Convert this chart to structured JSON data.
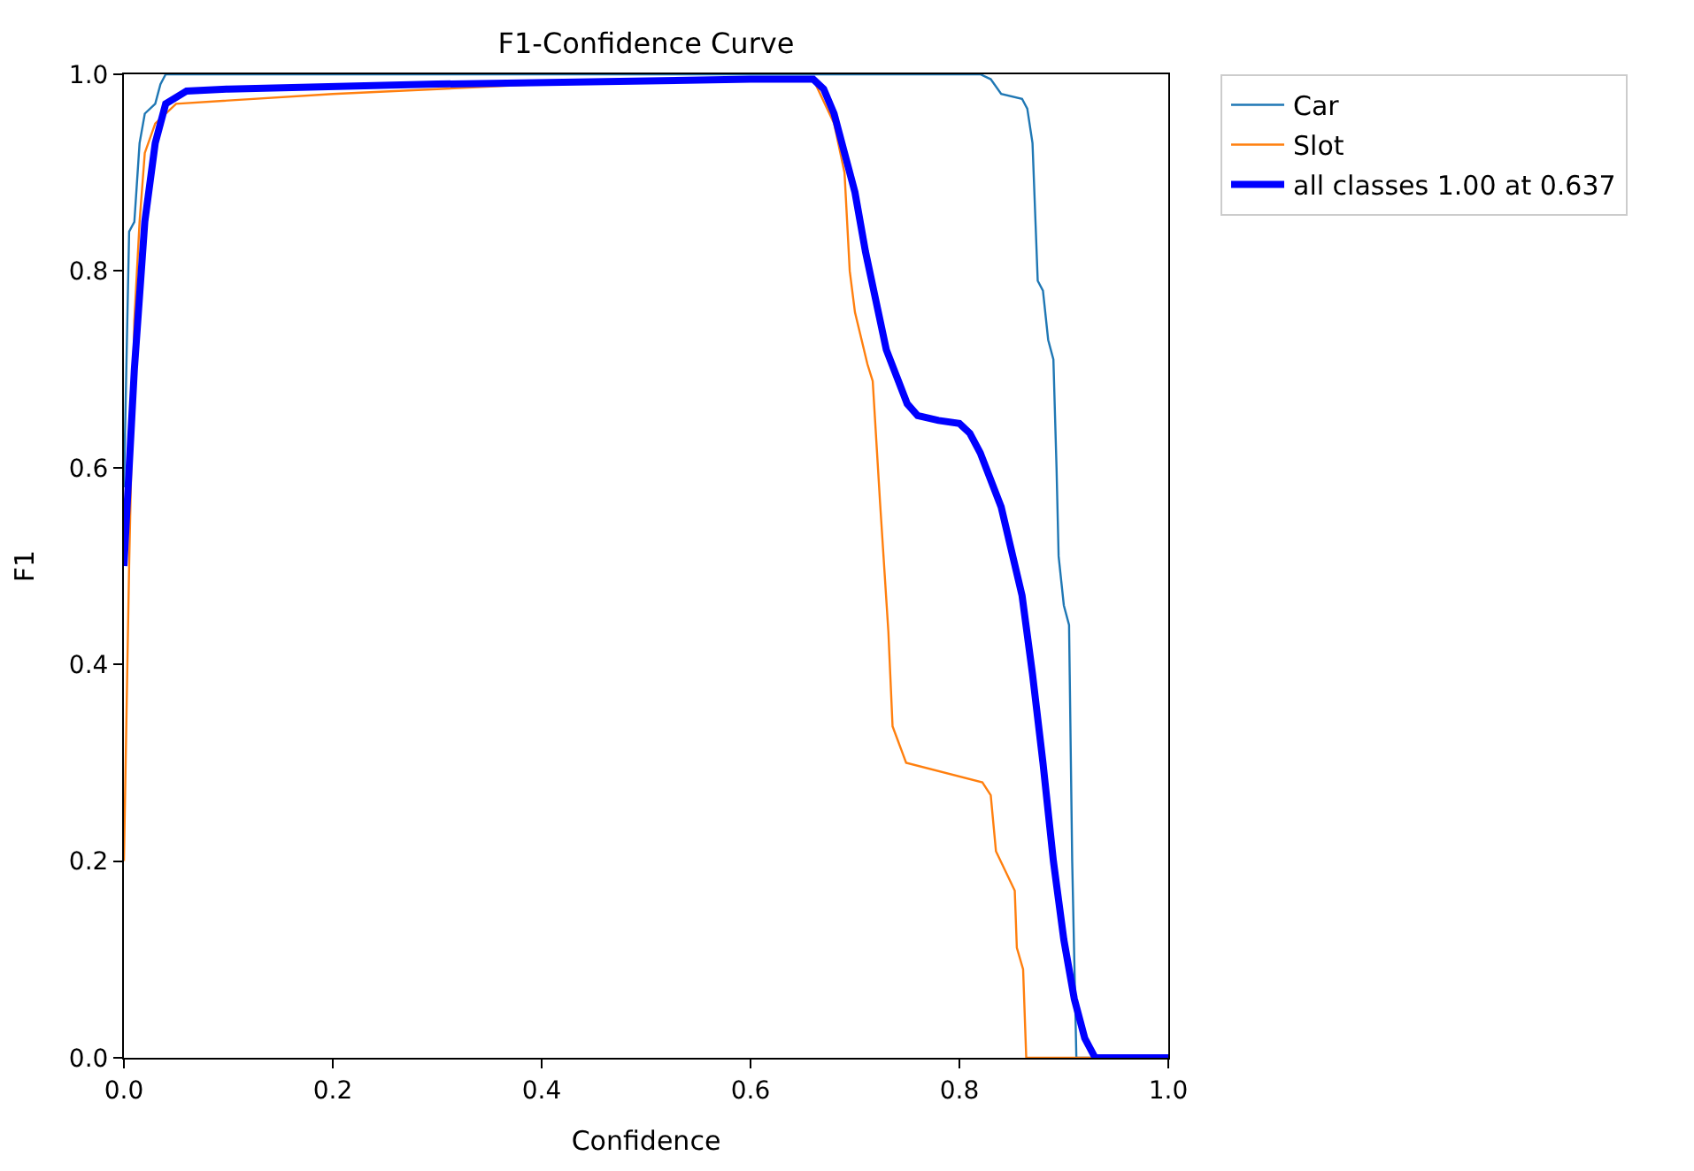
{
  "chart_data": {
    "type": "line",
    "title": "F1-Confidence Curve",
    "xlabel": "Confidence",
    "ylabel": "F1",
    "xlim": [
      0,
      1
    ],
    "ylim": [
      0,
      1
    ],
    "xticks": [
      {
        "value": 0,
        "label": "0.0"
      },
      0.2,
      0.4,
      0.6,
      0.8,
      {
        "value": 1,
        "label": "1.0"
      }
    ],
    "yticks": [
      {
        "value": 0,
        "label": "0.0"
      },
      0.2,
      0.4,
      0.6,
      0.8,
      {
        "value": 1,
        "label": "1.0"
      }
    ],
    "legend": "top right",
    "marker": "none",
    "line_style": "solid",
    "series": [
      {
        "name": "Car",
        "color": "#1f77b4",
        "x": [
          0,
          0.005,
          0.01,
          0.015,
          0.02,
          0.03,
          0.035,
          0.04,
          0.3,
          0.6,
          0.82,
          0.83,
          0.84,
          0.86,
          0.865,
          0.87,
          0.875,
          0.88,
          0.885,
          0.89,
          0.893,
          0.895,
          0.9,
          0.905,
          0.908,
          0.912,
          0.93,
          1.0
        ],
        "values": [
          0.58,
          0.84,
          0.85,
          0.93,
          0.96,
          0.97,
          0.99,
          1.0,
          1.0,
          1.0,
          1.0,
          0.995,
          0.98,
          0.975,
          0.965,
          0.93,
          0.79,
          0.78,
          0.73,
          0.71,
          0.6,
          0.51,
          0.46,
          0.44,
          0.2,
          0,
          0,
          0
        ]
      },
      {
        "name": "Slot",
        "color": "#ff7f0e",
        "x": [
          0,
          0.005,
          0.01,
          0.015,
          0.02,
          0.03,
          0.05,
          0.2,
          0.4,
          0.6,
          0.66,
          0.68,
          0.69,
          0.695,
          0.7,
          0.712,
          0.717,
          0.724,
          0.732,
          0.736,
          0.749,
          0.822,
          0.83,
          0.835,
          0.853,
          0.855,
          0.861,
          0.864,
          1.0
        ],
        "values": [
          0.2,
          0.5,
          0.75,
          0.85,
          0.92,
          0.95,
          0.97,
          0.98,
          0.99,
          0.995,
          0.995,
          0.95,
          0.9,
          0.8,
          0.758,
          0.705,
          0.688,
          0.565,
          0.433,
          0.337,
          0.3,
          0.28,
          0.267,
          0.21,
          0.17,
          0.112,
          0.09,
          0,
          0
        ]
      },
      {
        "name": "all classes 1.00 at 0.637",
        "color": "#0000ff",
        "x": [
          0,
          0.01,
          0.02,
          0.03,
          0.04,
          0.06,
          0.1,
          0.3,
          0.6,
          0.66,
          0.67,
          0.68,
          0.69,
          0.7,
          0.71,
          0.72,
          0.73,
          0.75,
          0.76,
          0.78,
          0.8,
          0.81,
          0.82,
          0.84,
          0.86,
          0.87,
          0.88,
          0.89,
          0.9,
          0.91,
          0.92,
          0.93,
          1.0
        ],
        "values": [
          0.5,
          0.7,
          0.85,
          0.93,
          0.97,
          0.983,
          0.985,
          0.99,
          0.995,
          0.995,
          0.985,
          0.96,
          0.92,
          0.88,
          0.82,
          0.77,
          0.72,
          0.665,
          0.653,
          0.648,
          0.645,
          0.635,
          0.615,
          0.56,
          0.47,
          0.39,
          0.3,
          0.2,
          0.12,
          0.06,
          0.02,
          0,
          0
        ]
      }
    ]
  }
}
